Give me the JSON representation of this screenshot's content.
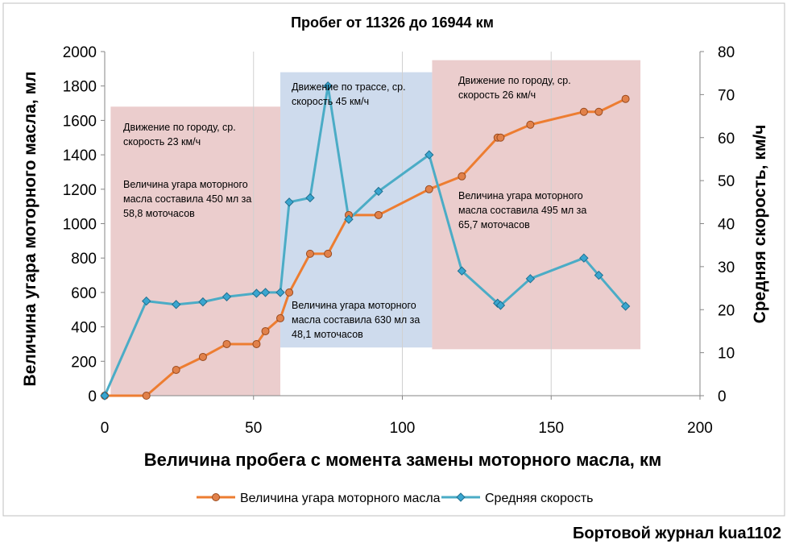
{
  "chart_data": {
    "type": "line",
    "title": "Пробег от 11326 до 16944 км",
    "xlabel": "Величина пробега с момента замены моторного масла, км",
    "ylabel_left": "Величина угара моторного масла, мл",
    "ylabel_right": "Средняя скорость, км/ч",
    "xlim": [
      0,
      200
    ],
    "ylim_left": [
      0,
      2000
    ],
    "ylim_right": [
      0,
      80
    ],
    "x_ticks": [
      0,
      50,
      100,
      150,
      200
    ],
    "y_left_ticks": [
      0,
      200,
      400,
      600,
      800,
      1000,
      1200,
      1400,
      1600,
      1800,
      2000
    ],
    "y_right_ticks": [
      0,
      10,
      20,
      30,
      40,
      50,
      60,
      70,
      80
    ],
    "grid": "vertical",
    "legend": "bottom",
    "series": [
      {
        "name": "Величина угара моторного масла",
        "axis": "left",
        "color": "#ed7d31",
        "marker_fill": "#e1814a",
        "marker": "circle",
        "x": [
          0,
          14,
          24,
          33,
          41,
          51,
          54,
          59,
          62,
          69,
          75,
          82,
          92,
          109,
          120,
          132,
          133,
          143,
          161,
          166,
          175
        ],
        "y": [
          0,
          0,
          150,
          225,
          300,
          300,
          375,
          450,
          600,
          825,
          825,
          1050,
          1050,
          1200,
          1275,
          1500,
          1500,
          1575,
          1650,
          1650,
          1725
        ]
      },
      {
        "name": "Средняя скорость",
        "axis": "right",
        "color": "#4bacc6",
        "marker_fill": "#3aa6d0",
        "marker": "diamond",
        "x": [
          0,
          14,
          24,
          33,
          41,
          51,
          54,
          59,
          62,
          69,
          75,
          82,
          92,
          109,
          120,
          132,
          133,
          143,
          161,
          166,
          175
        ],
        "y": [
          0,
          22,
          21.2,
          21.8,
          23,
          23.8,
          24,
          24,
          45,
          46,
          72,
          41,
          47.5,
          56,
          29,
          21.5,
          21,
          27.2,
          32,
          28,
          20.8
        ]
      }
    ],
    "regions": [
      {
        "name": "city-1",
        "x_from": 2,
        "x_to": 59,
        "y_from": 0,
        "y_to": 1680,
        "color": "#e8c4c4",
        "caption_top": [
          "Движение по городу, ср.",
          "скорость 23 км/ч"
        ],
        "caption_bottom": [
          "Величина угара моторного",
          "масла составила 450 мл за",
          "58,8 моточасов"
        ]
      },
      {
        "name": "highway",
        "x_from": 59,
        "x_to": 110,
        "y_from": 280,
        "y_to": 1880,
        "color": "#c5d5ea",
        "caption_top": [
          "Движение по трассе, ср.",
          "скорость 45 км/ч"
        ],
        "caption_bottom": [
          "Величина угара моторного",
          "масла составила 630 мл за",
          "48,1 моточасов"
        ]
      },
      {
        "name": "city-2",
        "x_from": 110,
        "x_to": 180,
        "y_from": 270,
        "y_to": 1950,
        "color": "#e8c4c4",
        "caption_top": [
          "Движение по городу, ср.",
          "скорость 26 км/ч"
        ],
        "caption_bottom": [
          "Величина угара моторного",
          "масла составила 495 мл за",
          "65,7 моточасов"
        ]
      }
    ]
  },
  "footer": "Бортовой журнал kua1102"
}
